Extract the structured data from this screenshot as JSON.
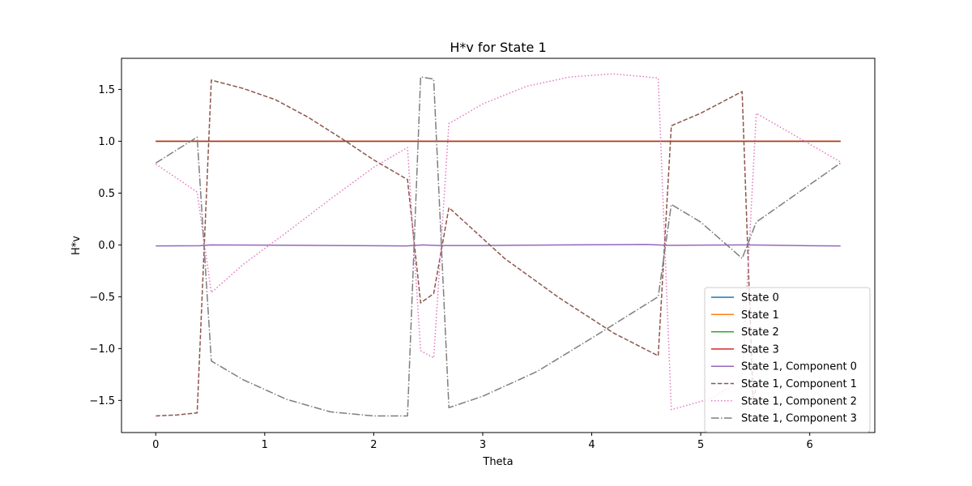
{
  "chart_data": {
    "type": "line",
    "title": "H*v for State 1",
    "xlabel": "Theta",
    "ylabel": "H*v",
    "xlim": [
      -0.314,
      6.597
    ],
    "ylim": [
      -1.81,
      1.8
    ],
    "xticks": [
      0,
      1,
      2,
      3,
      4,
      5,
      6
    ],
    "yticks": [
      -1.5,
      -1.0,
      -0.5,
      0.0,
      0.5,
      1.0,
      1.5
    ],
    "xtick_labels": [
      "0",
      "1",
      "2",
      "3",
      "4",
      "5",
      "6"
    ],
    "ytick_labels": [
      "−1.5",
      "−1.0",
      "−0.5",
      "0.0",
      "0.5",
      "1.0",
      "1.5"
    ],
    "grid": false,
    "legend_position": "lower-right",
    "series": [
      {
        "name": "State 0",
        "color": "#1f77b4",
        "style": "solid",
        "x": [
          0,
          6.283
        ],
        "y": [
          1.0,
          1.0
        ]
      },
      {
        "name": "State 1",
        "color": "#ff7f0e",
        "style": "solid",
        "x": [
          0,
          6.283
        ],
        "y": [
          1.0,
          1.0
        ]
      },
      {
        "name": "State 2",
        "color": "#2ca02c",
        "style": "solid",
        "x": [
          0,
          6.283
        ],
        "y": [
          1.0,
          1.0
        ]
      },
      {
        "name": "State 3",
        "color": "#d62728",
        "style": "solid",
        "x": [
          0,
          6.283
        ],
        "y": [
          1.0,
          1.0
        ]
      },
      {
        "name": "State 1, Component 0",
        "color": "#9467bd",
        "style": "solid",
        "x": [
          0,
          0.4,
          0.5,
          1.0,
          1.5,
          2.0,
          2.3,
          2.45,
          2.6,
          3.0,
          3.5,
          4.0,
          4.5,
          4.7,
          5.0,
          5.4,
          5.6,
          6.0,
          6.283
        ],
        "y": [
          -0.01,
          -0.008,
          0.0,
          -0.002,
          -0.005,
          -0.008,
          -0.01,
          0.0,
          -0.006,
          -0.006,
          -0.002,
          0.002,
          0.004,
          -0.004,
          -0.002,
          0.0,
          -0.002,
          -0.008,
          -0.01
        ]
      },
      {
        "name": "State 1, Component 1",
        "color": "#8c564b",
        "style": "dashed",
        "x": [
          0,
          0.2,
          0.38,
          0.51,
          0.8,
          1.1,
          1.4,
          1.7,
          2.0,
          2.31,
          2.43,
          2.55,
          2.69,
          3.2,
          3.7,
          4.2,
          4.61,
          4.73,
          5.0,
          5.38,
          5.48,
          5.51
        ],
        "y": [
          -1.65,
          -1.64,
          -1.62,
          1.59,
          1.51,
          1.4,
          1.23,
          1.03,
          0.82,
          0.63,
          -0.56,
          -0.47,
          0.36,
          -0.13,
          -0.51,
          -0.85,
          -1.07,
          1.15,
          1.27,
          1.48,
          -1.48,
          -1.38
        ]
      },
      {
        "name": "State 1, Component 2",
        "color": "#e377c2",
        "style": "dotted",
        "x": [
          0,
          0.38,
          0.51,
          0.8,
          1.2,
          1.6,
          2.0,
          2.31,
          2.43,
          2.55,
          2.69,
          3.0,
          3.4,
          3.8,
          4.2,
          4.61,
          4.73,
          5.1,
          5.38,
          5.51,
          6.283
        ],
        "y": [
          0.78,
          0.51,
          -0.46,
          -0.19,
          0.12,
          0.44,
          0.75,
          0.94,
          -1.02,
          -1.09,
          1.17,
          1.36,
          1.53,
          1.62,
          1.65,
          1.61,
          -1.59,
          -1.48,
          -1.3,
          1.27,
          0.8
        ]
      },
      {
        "name": "State 1, Component 3",
        "color": "#7f7f7f",
        "style": "dashdot",
        "x": [
          0,
          0.38,
          0.51,
          0.8,
          1.2,
          1.6,
          2.0,
          2.31,
          2.43,
          2.55,
          2.69,
          3.0,
          3.5,
          4.0,
          4.61,
          4.73,
          5.0,
          5.38,
          5.51,
          6.283
        ],
        "y": [
          0.79,
          1.04,
          -1.12,
          -1.3,
          -1.49,
          -1.61,
          -1.65,
          -1.65,
          1.62,
          1.6,
          -1.57,
          -1.46,
          -1.22,
          -0.9,
          -0.5,
          0.39,
          0.22,
          -0.13,
          0.22,
          0.79
        ]
      }
    ]
  }
}
